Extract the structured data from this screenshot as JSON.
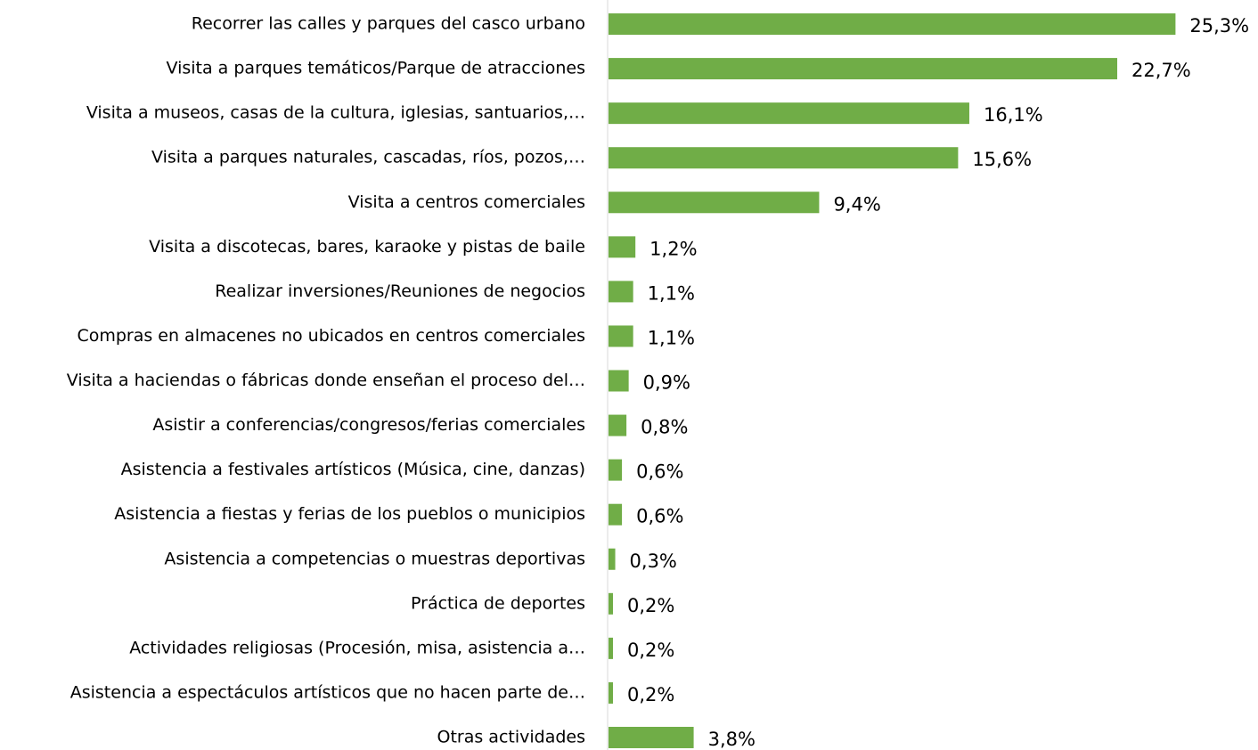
{
  "chart_data": {
    "type": "barh",
    "categories": [
      "Recorrer las calles y parques del casco urbano",
      "Visita a parques temáticos/Parque de atracciones",
      "Visita a museos, casas de la cultura, iglesias, santuarios,…",
      "Visita a parques naturales, cascadas, ríos, pozos,…",
      "Visita a centros comerciales",
      "Visita a discotecas, bares, karaoke y pistas de baile",
      "Realizar inversiones/Reuniones de negocios",
      "Compras en almacenes no ubicados en centros comerciales",
      "Visita a haciendas o fábricas donde enseñan el proceso del…",
      "Asistir a conferencias/congresos/ferias comerciales",
      "Asistencia a festivales artísticos (Música, cine, danzas)",
      "Asistencia a fiestas y ferias de los pueblos o municipios",
      "Asistencia a competencias o muestras deportivas",
      "Práctica de deportes",
      "Actividades religiosas (Procesión, misa, asistencia a…",
      "Asistencia a espectáculos artísticos que no hacen parte de…",
      "Otras actividades"
    ],
    "values": [
      25.3,
      22.7,
      16.1,
      15.6,
      9.4,
      1.2,
      1.1,
      1.1,
      0.9,
      0.8,
      0.6,
      0.6,
      0.3,
      0.2,
      0.2,
      0.2,
      3.8
    ],
    "value_labels": [
      "25,3%",
      "22,7%",
      "16,1%",
      "15,6%",
      "9,4%",
      "1,2%",
      "1,1%",
      "1,1%",
      "0,9%",
      "0,8%",
      "0,6%",
      "0,6%",
      "0,3%",
      "0,2%",
      "0,2%",
      "0,2%",
      "3,8%"
    ],
    "color": "#70ad47",
    "xlim": [
      0,
      26
    ]
  }
}
